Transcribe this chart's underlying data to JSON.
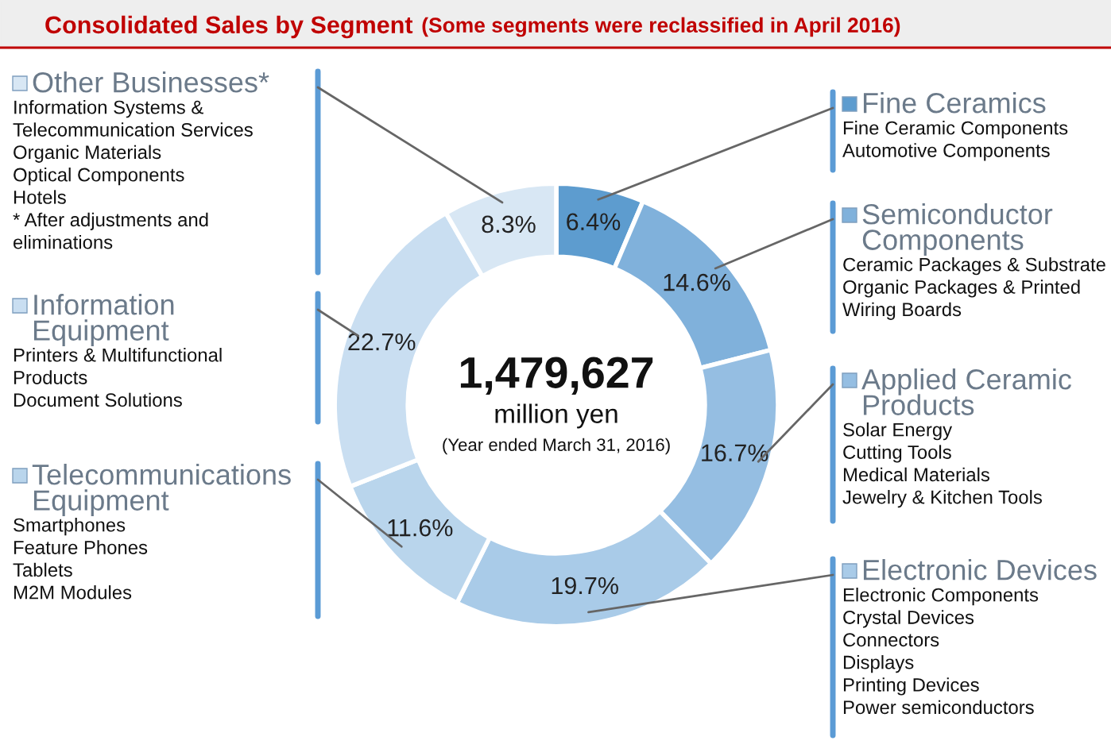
{
  "chart_data": {
    "type": "donut",
    "legend": "left",
    "title": "Consolidated Sales by Segment",
    "subtitle": "(Some segments were reclassified in April 2016)",
    "categories": [
      "Fine Ceramics",
      "Semiconductor Components",
      "Applied Ceramic Products",
      "Electronic Devices",
      "Telecommunications Equipment",
      "Information Equipment",
      "Other Businesses*"
    ],
    "values": [
      6.4,
      14.6,
      16.7,
      19.7,
      11.6,
      22.7,
      8.3
    ],
    "value_labels": [
      "6.4%",
      "14.6%",
      "16.7%",
      "19.7%",
      "11.6%",
      "22.7%",
      "8.3%"
    ],
    "colors": [
      "#5d9ccf",
      "#80b1db",
      "#95bee2",
      "#a9cbe8",
      "#b9d5ec",
      "#c9def1",
      "#d8e7f4"
    ],
    "annotations": [
      "1,479,627",
      "million yen",
      "(Year ended March 31, 2016)",
      "Fine Ceramic Components\nAutomotive Components",
      "Ceramic Packages & Substrate\nOrganic Packages & Printed Wiring Boards",
      "Solar Energy\nCutting Tools\nMedical Materials\nJewelry & Kitchen Tools",
      "Electronic Components\nCrystal Devices\nConnectors\nDisplays\nPrinting Devices\nPower semiconductors",
      "Smartphones\nFeature Phones\nTablets\nM2M Modules",
      "Printers & Multifunctional Products\nDocument Solutions",
      "Information Systems & Telecommunication Services\nOrganic Materials\nOptical Components\nHotels\n* After adjustments and eliminations"
    ]
  }
}
